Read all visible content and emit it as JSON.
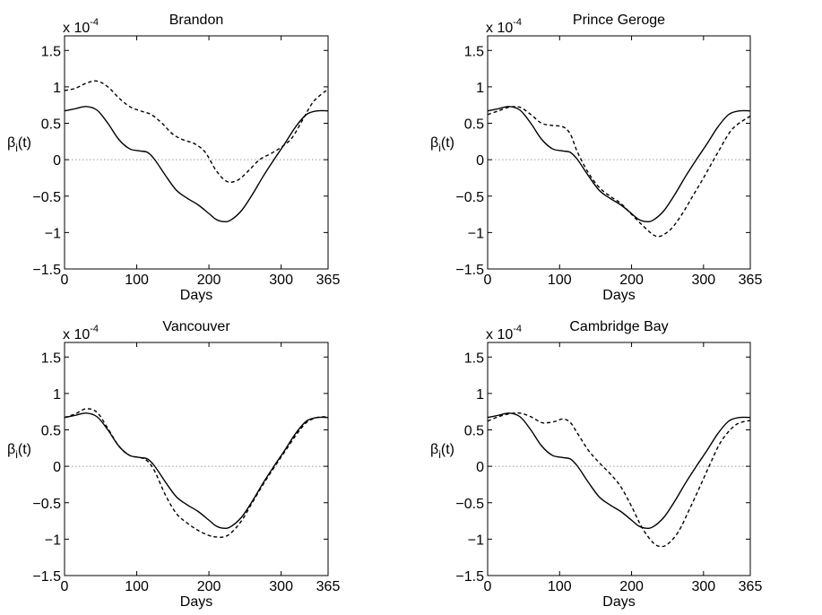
{
  "figure": {
    "colors": {
      "axes": "#000000",
      "zero_line": "#9a9a9a",
      "background": "#ffffff"
    }
  },
  "chart_data": [
    {
      "type": "line",
      "title": "Brandon",
      "xlabel": "Days",
      "ylabel": "β_i(t)",
      "y_scale_label": "x 10^-4",
      "xlim": [
        0,
        365
      ],
      "ylim": [
        -1.5,
        1.7
      ],
      "xticks": [
        0,
        100,
        200,
        300,
        365
      ],
      "yticks": [
        -1.5,
        -1,
        -0.5,
        0,
        0.5,
        1,
        1.5
      ],
      "ytick_labels": [
        "−1.5",
        "−1",
        "−0.5",
        "0",
        "0.5",
        "1",
        "1.5"
      ],
      "reference_line": {
        "y": 0,
        "style": "dotted"
      },
      "series": [
        {
          "style": "solid",
          "x": [
            0,
            15,
            30,
            45,
            60,
            75,
            90,
            105,
            115,
            125,
            140,
            155,
            170,
            185,
            200,
            210,
            220,
            230,
            245,
            260,
            275,
            290,
            305,
            320,
            335,
            350,
            365
          ],
          "y": [
            0.67,
            0.7,
            0.73,
            0.68,
            0.5,
            0.28,
            0.15,
            0.12,
            0.1,
            0.0,
            -0.22,
            -0.42,
            -0.53,
            -0.62,
            -0.74,
            -0.82,
            -0.85,
            -0.83,
            -0.7,
            -0.48,
            -0.23,
            0.0,
            0.22,
            0.45,
            0.62,
            0.67,
            0.67
          ]
        },
        {
          "style": "dashed",
          "x": [
            0,
            15,
            30,
            45,
            60,
            75,
            90,
            105,
            120,
            135,
            150,
            165,
            180,
            195,
            210,
            225,
            240,
            255,
            270,
            285,
            300,
            315,
            330,
            345,
            365
          ],
          "y": [
            0.95,
            0.98,
            1.05,
            1.08,
            1.0,
            0.85,
            0.73,
            0.67,
            0.62,
            0.5,
            0.35,
            0.27,
            0.22,
            0.1,
            -0.15,
            -0.3,
            -0.28,
            -0.15,
            0.0,
            0.08,
            0.17,
            0.3,
            0.55,
            0.8,
            0.97
          ]
        }
      ]
    },
    {
      "type": "line",
      "title": "Prince Geroge",
      "xlabel": "Days",
      "ylabel": "β_i(t)",
      "y_scale_label": "x 10^-4",
      "xlim": [
        0,
        365
      ],
      "ylim": [
        -1.5,
        1.7
      ],
      "xticks": [
        0,
        100,
        200,
        300,
        365
      ],
      "yticks": [
        -1.5,
        -1,
        -0.5,
        0,
        0.5,
        1,
        1.5
      ],
      "ytick_labels": [
        "−1.5",
        "−1",
        "−0.5",
        "0",
        "0.5",
        "1",
        "1.5"
      ],
      "reference_line": {
        "y": 0,
        "style": "dotted"
      },
      "series": [
        {
          "style": "solid",
          "x": [
            0,
            15,
            30,
            45,
            60,
            75,
            90,
            105,
            115,
            125,
            140,
            155,
            170,
            185,
            200,
            210,
            220,
            230,
            245,
            260,
            275,
            290,
            305,
            320,
            335,
            350,
            365
          ],
          "y": [
            0.67,
            0.7,
            0.73,
            0.68,
            0.5,
            0.28,
            0.15,
            0.12,
            0.1,
            0.0,
            -0.22,
            -0.42,
            -0.53,
            -0.62,
            -0.74,
            -0.82,
            -0.85,
            -0.83,
            -0.7,
            -0.48,
            -0.23,
            0.0,
            0.22,
            0.45,
            0.62,
            0.67,
            0.67
          ]
        },
        {
          "style": "dashed",
          "x": [
            0,
            15,
            30,
            45,
            60,
            75,
            90,
            105,
            115,
            125,
            140,
            155,
            170,
            185,
            200,
            215,
            230,
            240,
            255,
            270,
            285,
            300,
            320,
            340,
            365
          ],
          "y": [
            0.62,
            0.67,
            0.72,
            0.72,
            0.62,
            0.5,
            0.47,
            0.45,
            0.35,
            0.1,
            -0.18,
            -0.38,
            -0.5,
            -0.6,
            -0.75,
            -0.9,
            -1.03,
            -1.05,
            -0.95,
            -0.75,
            -0.5,
            -0.25,
            0.1,
            0.42,
            0.6
          ]
        }
      ]
    },
    {
      "type": "line",
      "title": "Vancouver",
      "xlabel": "Days",
      "ylabel": "β_i(t)",
      "y_scale_label": "x 10^-4",
      "xlim": [
        0,
        365
      ],
      "ylim": [
        -1.5,
        1.7
      ],
      "xticks": [
        0,
        100,
        200,
        300,
        365
      ],
      "yticks": [
        -1.5,
        -1,
        -0.5,
        0,
        0.5,
        1,
        1.5
      ],
      "ytick_labels": [
        "−1.5",
        "−1",
        "−0.5",
        "0",
        "0.5",
        "1",
        "1.5"
      ],
      "reference_line": {
        "y": 0,
        "style": "dotted"
      },
      "series": [
        {
          "style": "solid",
          "x": [
            0,
            15,
            30,
            45,
            60,
            75,
            90,
            105,
            115,
            125,
            140,
            155,
            170,
            185,
            200,
            210,
            220,
            230,
            245,
            260,
            275,
            290,
            305,
            320,
            335,
            350,
            365
          ],
          "y": [
            0.67,
            0.7,
            0.73,
            0.68,
            0.5,
            0.28,
            0.15,
            0.12,
            0.1,
            0.0,
            -0.22,
            -0.42,
            -0.53,
            -0.62,
            -0.74,
            -0.82,
            -0.85,
            -0.83,
            -0.7,
            -0.48,
            -0.23,
            0.0,
            0.22,
            0.45,
            0.62,
            0.67,
            0.67
          ]
        },
        {
          "style": "dashed",
          "x": [
            0,
            15,
            30,
            45,
            60,
            75,
            90,
            105,
            115,
            125,
            140,
            155,
            170,
            185,
            200,
            210,
            220,
            230,
            245,
            260,
            275,
            290,
            305,
            320,
            335,
            350,
            365
          ],
          "y": [
            0.67,
            0.72,
            0.79,
            0.74,
            0.52,
            0.28,
            0.15,
            0.12,
            0.07,
            -0.07,
            -0.4,
            -0.65,
            -0.78,
            -0.88,
            -0.95,
            -0.97,
            -0.97,
            -0.92,
            -0.75,
            -0.5,
            -0.25,
            -0.02,
            0.2,
            0.42,
            0.6,
            0.67,
            0.68
          ]
        }
      ]
    },
    {
      "type": "line",
      "title": "Cambridge Bay",
      "xlabel": "Days",
      "ylabel": "β_i(t)",
      "y_scale_label": "x 10^-4",
      "xlim": [
        0,
        365
      ],
      "ylim": [
        -1.5,
        1.7
      ],
      "xticks": [
        0,
        100,
        200,
        300,
        365
      ],
      "yticks": [
        -1.5,
        -1,
        -0.5,
        0,
        0.5,
        1,
        1.5
      ],
      "ytick_labels": [
        "−1.5",
        "−1",
        "−0.5",
        "0",
        "0.5",
        "1",
        "1.5"
      ],
      "reference_line": {
        "y": 0,
        "style": "dotted"
      },
      "series": [
        {
          "style": "solid",
          "x": [
            0,
            15,
            30,
            45,
            60,
            75,
            90,
            105,
            115,
            125,
            140,
            155,
            170,
            185,
            200,
            210,
            220,
            230,
            245,
            260,
            275,
            290,
            305,
            320,
            335,
            350,
            365
          ],
          "y": [
            0.67,
            0.7,
            0.73,
            0.68,
            0.5,
            0.28,
            0.15,
            0.12,
            0.1,
            0.0,
            -0.22,
            -0.42,
            -0.53,
            -0.62,
            -0.74,
            -0.82,
            -0.85,
            -0.83,
            -0.7,
            -0.48,
            -0.23,
            0.0,
            0.22,
            0.45,
            0.62,
            0.67,
            0.67
          ]
        },
        {
          "style": "dashed",
          "x": [
            0,
            15,
            30,
            45,
            60,
            75,
            85,
            95,
            105,
            115,
            125,
            140,
            155,
            170,
            185,
            200,
            215,
            230,
            240,
            250,
            265,
            280,
            295,
            310,
            325,
            345,
            365
          ],
          "y": [
            0.62,
            0.68,
            0.72,
            0.73,
            0.68,
            0.6,
            0.6,
            0.62,
            0.65,
            0.6,
            0.45,
            0.22,
            0.05,
            -0.1,
            -0.28,
            -0.55,
            -0.85,
            -1.05,
            -1.1,
            -1.07,
            -0.9,
            -0.6,
            -0.28,
            0.05,
            0.35,
            0.57,
            0.63
          ]
        }
      ]
    }
  ]
}
